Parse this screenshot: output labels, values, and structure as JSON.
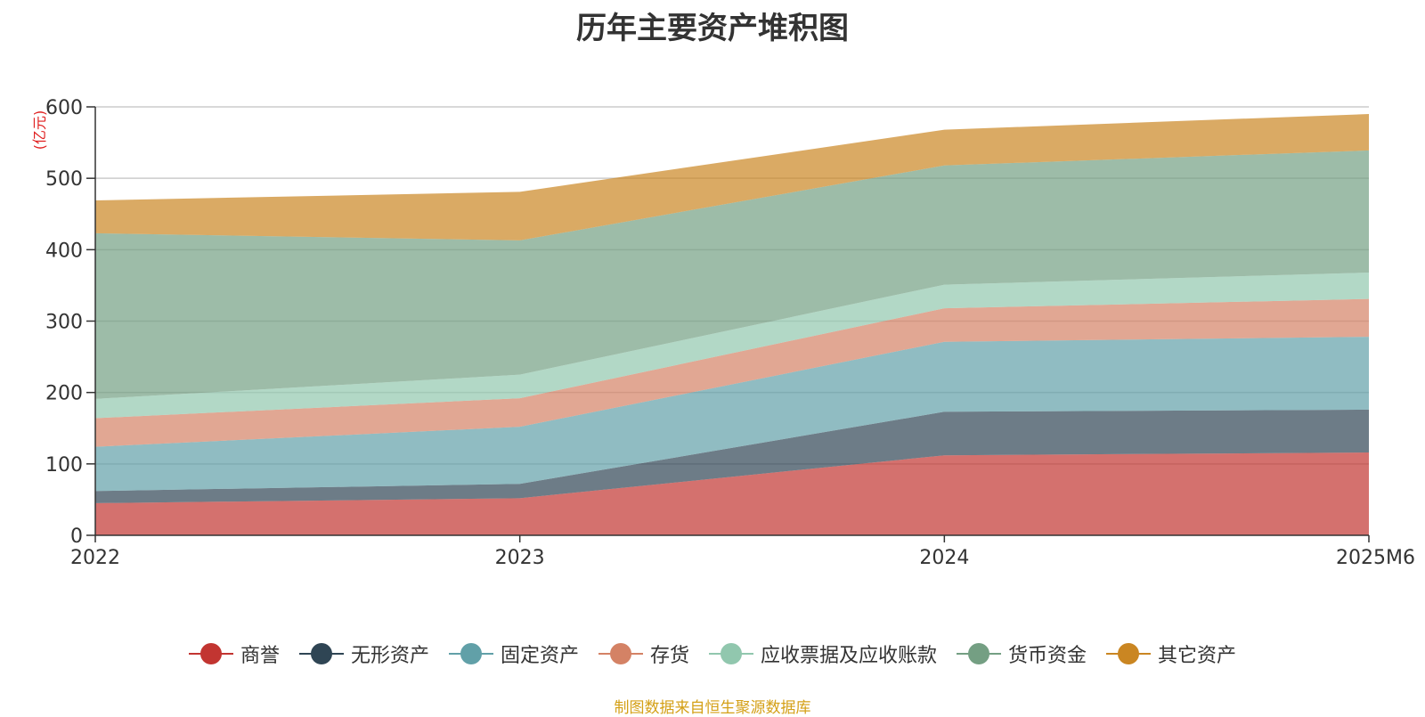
{
  "chart_data": {
    "type": "area",
    "stacked": true,
    "title": "历年主要资产堆积图",
    "unit": "(亿元)",
    "categories": [
      "2022",
      "2023",
      "2024",
      "2025M6"
    ],
    "ylim": [
      0,
      600
    ],
    "yticks": [
      0,
      100,
      200,
      300,
      400,
      500,
      600
    ],
    "grid": true,
    "legend_position": "bottom-center",
    "series": [
      {
        "name": "商誉",
        "color": "#c23531",
        "values": [
          45,
          52,
          112,
          116
        ]
      },
      {
        "name": "无形资产",
        "color": "#2f4554",
        "values": [
          17,
          20,
          61,
          60
        ]
      },
      {
        "name": "固定资产",
        "color": "#61a0a8",
        "values": [
          62,
          80,
          98,
          102
        ]
      },
      {
        "name": "存货",
        "color": "#d48265",
        "values": [
          40,
          40,
          47,
          53
        ]
      },
      {
        "name": "应收票据及应收账款",
        "color": "#91c7ae",
        "values": [
          27,
          33,
          33,
          37
        ]
      },
      {
        "name": "货币资金",
        "color": "#749f83",
        "values": [
          232,
          188,
          167,
          171
        ]
      },
      {
        "name": "其它资产",
        "color": "#ca8622",
        "values": [
          46,
          68,
          50,
          51
        ]
      }
    ],
    "source": "制图数据来自恒生聚源数据库"
  }
}
